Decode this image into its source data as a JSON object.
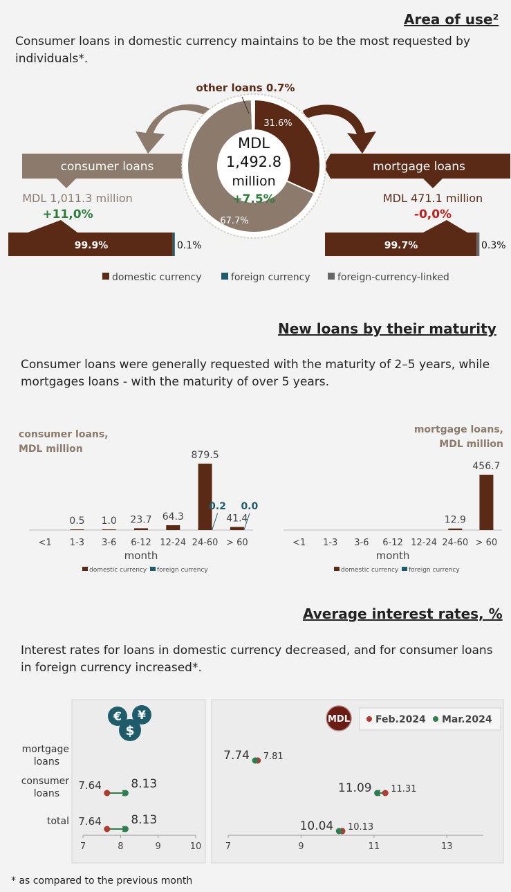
{
  "area": {
    "title": "Area of use²",
    "text": "Consumer loans in domestic currency maintains to be the most requested by individuals*.",
    "other_label": "other loans 0.7%",
    "center_line1": "MDL",
    "center_line2": "1,492.8",
    "center_line3": "million",
    "center_growth": "+7.5%",
    "donut": [
      {
        "name": "mortgage",
        "value": 31.6,
        "label": "31.6%",
        "color": "#5a2a17"
      },
      {
        "name": "consumer",
        "value": 67.7,
        "label": "67.7%",
        "color": "#8c7a6c"
      },
      {
        "name": "other",
        "value": 0.7,
        "label": "",
        "color": "#ffffff"
      }
    ],
    "consumer": {
      "label": "consumer loans",
      "amount": "MDL 1,011.3 million",
      "growth": "+11,0%",
      "domestic_share": 99.9,
      "domestic_label": "99.9%",
      "foreign_label": "0.1%"
    },
    "mortgage": {
      "label": "mortgage loans",
      "amount": "MDL 471.1 million",
      "growth": "-0,0%",
      "domestic_share": 99.7,
      "domestic_label": "99.7%",
      "foreign_label": "0.3%"
    },
    "legend": [
      "domestic currency",
      "foreign currency",
      "foreign-currency-linked"
    ]
  },
  "maturity": {
    "title": "New loans by their maturity",
    "text": "Consumer loans were generally requested with the maturity of 2–5 years, while mortgages loans - with the maturity of over 5 years.",
    "legend": [
      "domestic currency",
      "foreign currency"
    ]
  },
  "rates": {
    "title": "Average interest rates, %",
    "text": "Interest rates for loans in domestic currency decreased, and for consumer loans in foreign currency increased*.",
    "mdl_badge": "MDL",
    "legend": [
      "Feb.2024",
      "Mar.2024"
    ],
    "row_labels": [
      "mortgage loans",
      "consumer loans",
      "total"
    ]
  },
  "footnote": "* as compared to the previous month",
  "colors": {
    "domestic": "#5a2a17",
    "foreign": "#1f5c6b",
    "linked": "#666666",
    "consumer": "#8c7a6c",
    "mortgage": "#5a2a17",
    "green": "#2e7d3a",
    "red": "#c0201c",
    "feb": "#b03a2e",
    "mar": "#2e7d4f"
  },
  "chart_data": [
    {
      "type": "bar",
      "title": "consumer loans, MDL million",
      "xlabel": "month",
      "categories": [
        "<1",
        "1-3",
        "3-6",
        "6-12",
        "12-24",
        "24-60",
        "> 60"
      ],
      "series": [
        {
          "name": "domestic currency",
          "values": [
            0,
            0.5,
            1.0,
            23.7,
            64.3,
            879.5,
            41.4
          ],
          "labels": [
            "",
            "0.5",
            "1.0",
            "23.7",
            "64.3",
            "879.5",
            "41.4"
          ]
        },
        {
          "name": "foreign currency",
          "values": [
            0,
            0,
            0,
            0,
            0,
            0.2,
            0.0
          ],
          "labels": [
            "",
            "",
            "",
            "",
            "",
            "0.2",
            "0.0"
          ]
        }
      ]
    },
    {
      "type": "bar",
      "title": "mortgage loans, MDL million",
      "xlabel": "month",
      "categories": [
        "<1",
        "1-3",
        "3-6",
        "6-12",
        "12-24",
        "24-60",
        "> 60"
      ],
      "series": [
        {
          "name": "domestic currency",
          "values": [
            0,
            0,
            0,
            0,
            0,
            12.9,
            456.7
          ],
          "labels": [
            "",
            "",
            "",
            "",
            "",
            "12.9",
            "456.7"
          ]
        },
        {
          "name": "foreign currency",
          "values": [
            0,
            0,
            0,
            0,
            0,
            0,
            0
          ],
          "labels": [
            "",
            "",
            "",
            "",
            "",
            "",
            ""
          ]
        }
      ]
    },
    {
      "type": "scatter",
      "title": "",
      "categories": [
        "mortgage loans",
        "consumer loans",
        "total"
      ],
      "xlim": [
        7,
        10
      ],
      "ticks": [
        7,
        8,
        9,
        10
      ],
      "series": [
        {
          "name": "Feb.2024",
          "values": [
            null,
            7.64,
            7.64
          ],
          "labels": [
            "",
            "7.64",
            "7.64"
          ]
        },
        {
          "name": "Mar.2024",
          "values": [
            null,
            8.13,
            8.13
          ],
          "labels": [
            "",
            "8.13",
            "8.13"
          ]
        }
      ]
    },
    {
      "type": "scatter",
      "title": "",
      "categories": [
        "mortgage loans",
        "consumer loans",
        "total"
      ],
      "xlim": [
        7,
        14
      ],
      "ticks": [
        7,
        9,
        11,
        13
      ],
      "series": [
        {
          "name": "Feb.2024",
          "values": [
            7.81,
            11.31,
            10.13
          ],
          "labels": [
            "7.81",
            "11.31",
            "10.13"
          ]
        },
        {
          "name": "Mar.2024",
          "values": [
            7.74,
            11.09,
            10.04
          ],
          "labels": [
            "7.74",
            "11.09",
            "10.04"
          ]
        }
      ]
    }
  ]
}
